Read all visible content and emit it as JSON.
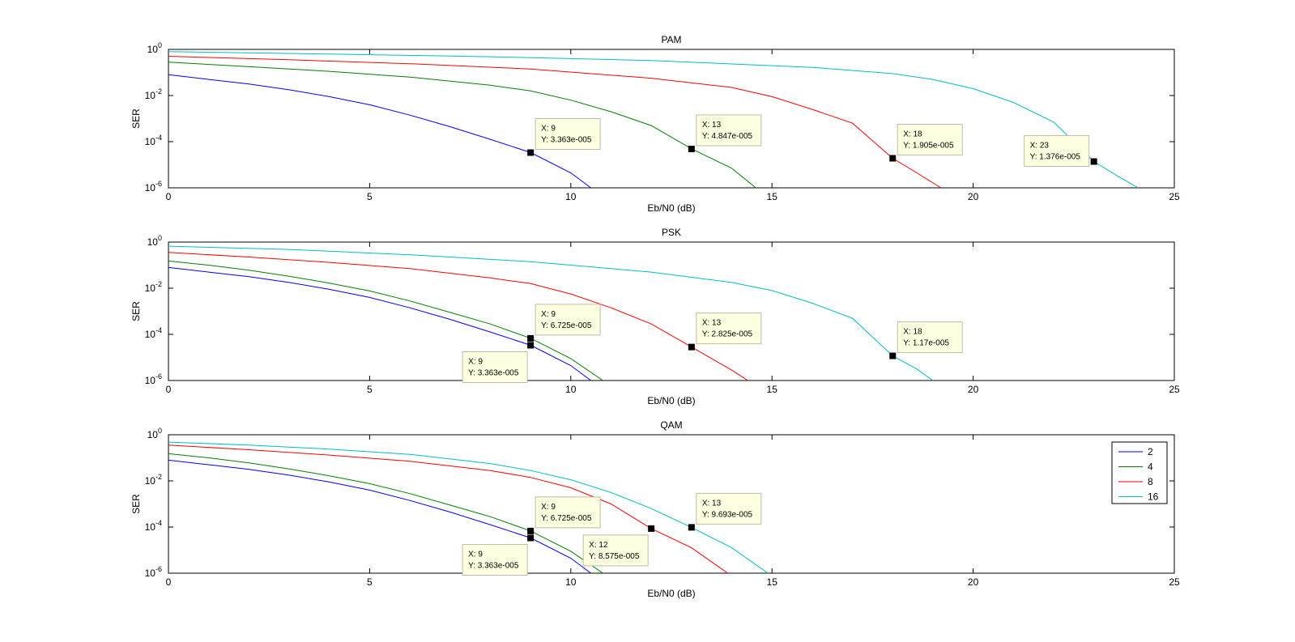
{
  "chart_data": [
    {
      "type": "line",
      "title": "PAM",
      "xlabel": "Eb/N0 (dB)",
      "ylabel": "SER",
      "xlim": [
        0,
        25
      ],
      "ylim_log10": [
        -6,
        0
      ],
      "y_scale": "log",
      "grid": false,
      "x_ticks": [
        "0",
        "5",
        "10",
        "15",
        "20",
        "25"
      ],
      "series": [
        {
          "color": "#0000ff",
          "x": [
            0,
            1,
            2,
            3,
            4,
            5,
            6,
            7,
            8,
            9,
            10,
            10.5
          ],
          "log10_y": [
            -1.1,
            -1.3,
            -1.5,
            -1.75,
            -2.05,
            -2.4,
            -2.85,
            -3.35,
            -3.9,
            -4.47,
            -5.35,
            -6.0
          ]
        },
        {
          "color": "#008000",
          "x": [
            0,
            2,
            4,
            6,
            8,
            9,
            10,
            11,
            12,
            13,
            14,
            14.6
          ],
          "log10_y": [
            -0.55,
            -0.75,
            -0.95,
            -1.2,
            -1.55,
            -1.8,
            -2.2,
            -2.7,
            -3.3,
            -4.31,
            -5.15,
            -6.0
          ]
        },
        {
          "color": "#ff0000",
          "x": [
            0,
            3,
            6,
            9,
            12,
            14,
            15,
            16,
            17,
            18,
            18.6,
            19.2
          ],
          "log10_y": [
            -0.3,
            -0.45,
            -0.62,
            -0.85,
            -1.25,
            -1.65,
            -2.05,
            -2.6,
            -3.2,
            -4.72,
            -5.35,
            -6.0
          ]
        },
        {
          "color": "#00bfbf",
          "x": [
            0,
            4,
            8,
            12,
            16,
            18,
            19,
            20,
            21,
            22,
            23,
            23.6,
            24.1
          ],
          "log10_y": [
            -0.1,
            -0.2,
            -0.32,
            -0.48,
            -0.78,
            -1.05,
            -1.3,
            -1.7,
            -2.3,
            -3.15,
            -4.86,
            -5.5,
            -6.0
          ]
        }
      ],
      "data_tips": [
        {
          "x": 9,
          "log10_y": -4.473,
          "x_label": "X: 9",
          "y_label": "Y: 3.363e-005",
          "position": "upper-right"
        },
        {
          "x": 13,
          "log10_y": -4.315,
          "x_label": "X: 13",
          "y_label": "Y: 4.847e-005",
          "position": "upper-right"
        },
        {
          "x": 18,
          "log10_y": -4.72,
          "x_label": "X: 18",
          "y_label": "Y: 1.905e-005",
          "position": "upper-right"
        },
        {
          "x": 23,
          "log10_y": -4.861,
          "x_label": "X: 23",
          "y_label": "Y: 1.376e-005",
          "position": "upper-left"
        }
      ]
    },
    {
      "type": "line",
      "title": "PSK",
      "xlabel": "Eb/N0 (dB)",
      "ylabel": "SER",
      "xlim": [
        0,
        25
      ],
      "ylim_log10": [
        -6,
        0
      ],
      "y_scale": "log",
      "grid": false,
      "x_ticks": [
        "0",
        "5",
        "10",
        "15",
        "20",
        "25"
      ],
      "series": [
        {
          "color": "#0000ff",
          "x": [
            0,
            1,
            2,
            3,
            4,
            5,
            6,
            7,
            8,
            9,
            10,
            10.5
          ],
          "log10_y": [
            -1.1,
            -1.3,
            -1.5,
            -1.75,
            -2.05,
            -2.4,
            -2.85,
            -3.35,
            -3.9,
            -4.47,
            -5.35,
            -6.0
          ]
        },
        {
          "color": "#008000",
          "x": [
            0,
            1,
            2,
            3,
            4,
            5,
            6,
            7,
            8,
            9,
            10,
            10.8
          ],
          "log10_y": [
            -0.82,
            -1.0,
            -1.22,
            -1.48,
            -1.78,
            -2.12,
            -2.55,
            -3.05,
            -3.55,
            -4.17,
            -5.05,
            -6.0
          ]
        },
        {
          "color": "#ff0000",
          "x": [
            0,
            2,
            4,
            6,
            8,
            9,
            10,
            11,
            12,
            13,
            14,
            14.4
          ],
          "log10_y": [
            -0.45,
            -0.65,
            -0.88,
            -1.15,
            -1.55,
            -1.8,
            -2.25,
            -2.85,
            -3.55,
            -4.549,
            -5.55,
            -6.0
          ]
        },
        {
          "color": "#00bfbf",
          "x": [
            0,
            3,
            6,
            9,
            12,
            14,
            15,
            16,
            17,
            18,
            18.6,
            19.0
          ],
          "log10_y": [
            -0.18,
            -0.32,
            -0.55,
            -0.85,
            -1.3,
            -1.75,
            -2.1,
            -2.65,
            -3.3,
            -4.932,
            -5.5,
            -6.0
          ]
        }
      ],
      "data_tips": [
        {
          "x": 9,
          "log10_y": -4.172,
          "x_label": "X: 9",
          "y_label": "Y: 6.725e-005",
          "position": "upper-right"
        },
        {
          "x": 9,
          "log10_y": -4.473,
          "x_label": "X: 9",
          "y_label": "Y: 3.363e-005",
          "position": "lower-left"
        },
        {
          "x": 13,
          "log10_y": -4.549,
          "x_label": "X: 13",
          "y_label": "Y: 2.825e-005",
          "position": "upper-right"
        },
        {
          "x": 18,
          "log10_y": -4.932,
          "x_label": "X: 18",
          "y_label": "Y: 1.17e-005",
          "position": "upper-right"
        }
      ]
    },
    {
      "type": "line",
      "title": "QAM",
      "xlabel": "Eb/N0 (dB)",
      "ylabel": "SER",
      "xlim": [
        0,
        25
      ],
      "ylim_log10": [
        -6,
        0
      ],
      "y_scale": "log",
      "grid": false,
      "x_ticks": [
        "0",
        "5",
        "10",
        "15",
        "20",
        "25"
      ],
      "legend_placement": "top-right",
      "legend": [
        "2",
        "4",
        "8",
        "16"
      ],
      "series": [
        {
          "color": "#0000ff",
          "x": [
            0,
            1,
            2,
            3,
            4,
            5,
            6,
            7,
            8,
            9,
            10,
            10.5
          ],
          "log10_y": [
            -1.1,
            -1.3,
            -1.5,
            -1.75,
            -2.05,
            -2.4,
            -2.85,
            -3.35,
            -3.9,
            -4.47,
            -5.35,
            -6.0
          ]
        },
        {
          "color": "#008000",
          "x": [
            0,
            1,
            2,
            3,
            4,
            5,
            6,
            7,
            8,
            9,
            10,
            10.8
          ],
          "log10_y": [
            -0.82,
            -1.0,
            -1.22,
            -1.48,
            -1.78,
            -2.12,
            -2.55,
            -3.05,
            -3.55,
            -4.17,
            -5.05,
            -6.0
          ]
        },
        {
          "color": "#ff0000",
          "x": [
            0,
            2,
            4,
            6,
            8,
            9,
            10,
            11,
            12,
            13,
            13.9
          ],
          "log10_y": [
            -0.45,
            -0.65,
            -0.88,
            -1.15,
            -1.55,
            -1.85,
            -2.3,
            -3.0,
            -4.067,
            -4.9,
            -6.0
          ]
        },
        {
          "color": "#00bfbf",
          "x": [
            0,
            2,
            4,
            6,
            8,
            9,
            10,
            11,
            12,
            13,
            14,
            14.9
          ],
          "log10_y": [
            -0.32,
            -0.45,
            -0.62,
            -0.85,
            -1.25,
            -1.55,
            -1.95,
            -2.5,
            -3.2,
            -4.014,
            -4.9,
            -6.0
          ]
        }
      ],
      "data_tips": [
        {
          "x": 9,
          "log10_y": -4.172,
          "x_label": "X: 9",
          "y_label": "Y: 6.725e-005",
          "position": "upper-right"
        },
        {
          "x": 9,
          "log10_y": -4.473,
          "x_label": "X: 9",
          "y_label": "Y: 3.363e-005",
          "position": "lower-left"
        },
        {
          "x": 12,
          "log10_y": -4.067,
          "x_label": "X: 12",
          "y_label": "Y: 8.575e-005",
          "position": "lower-left"
        },
        {
          "x": 13,
          "log10_y": -4.014,
          "x_label": "X: 13",
          "y_label": "Y: 9.693e-005",
          "position": "upper-right"
        }
      ]
    }
  ]
}
